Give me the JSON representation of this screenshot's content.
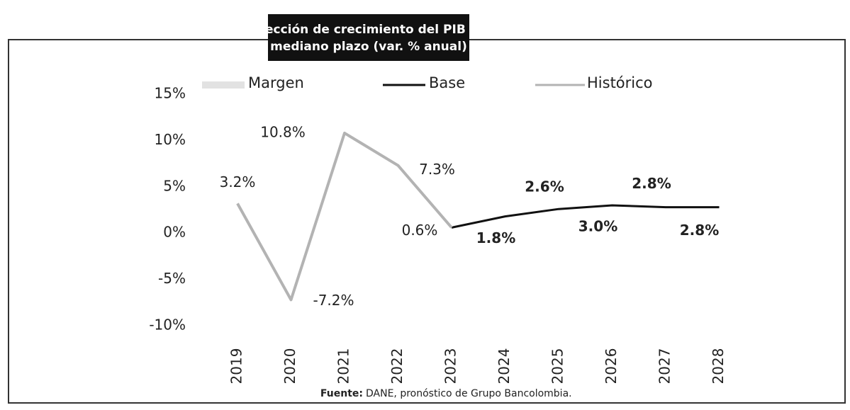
{
  "chart_data": {
    "type": "line",
    "title": "Proyección de crecimiento del PIB en el mediano plazo (var. % anual)",
    "title_lines": [
      "Proyección de crecimiento del PIB en el",
      "mediano plazo (var. % anual)"
    ],
    "categories": [
      "2019",
      "2020",
      "2021",
      "2022",
      "2023",
      "2024",
      "2025",
      "2026",
      "2027",
      "2028"
    ],
    "series": [
      {
        "name": "Margen",
        "color": "#e2e2e2",
        "values": [
          null,
          null,
          null,
          null,
          null,
          null,
          null,
          null,
          null,
          null
        ]
      },
      {
        "name": "Base",
        "color": "#111111",
        "values": [
          null,
          null,
          null,
          null,
          0.6,
          1.8,
          2.6,
          3.0,
          2.8,
          2.8
        ],
        "value_labels": [
          null,
          null,
          null,
          null,
          null,
          "1.8%",
          "2.6%",
          "3.0%",
          "2.8%",
          "2.8%"
        ]
      },
      {
        "name": "Histórico",
        "color": "#b3b3b3",
        "values": [
          3.2,
          -7.2,
          10.8,
          7.3,
          0.6,
          null,
          null,
          null,
          null,
          null
        ],
        "value_labels": [
          "3.2%",
          "-7.2%",
          "10.8%",
          "7.3%",
          "0.6%",
          null,
          null,
          null,
          null,
          null
        ]
      }
    ],
    "ylim": [
      -10,
      15
    ],
    "yticks": [
      {
        "value": -10,
        "label": "-10%"
      },
      {
        "value": -5,
        "label": "-5%"
      },
      {
        "value": 0,
        "label": "0%"
      },
      {
        "value": 5,
        "label": "5%"
      },
      {
        "value": 10,
        "label": "10%"
      },
      {
        "value": 15,
        "label": "15%"
      }
    ],
    "source_label": "Fuente:",
    "source_text": "DANE, pronóstico de Grupo Bancolombia."
  }
}
